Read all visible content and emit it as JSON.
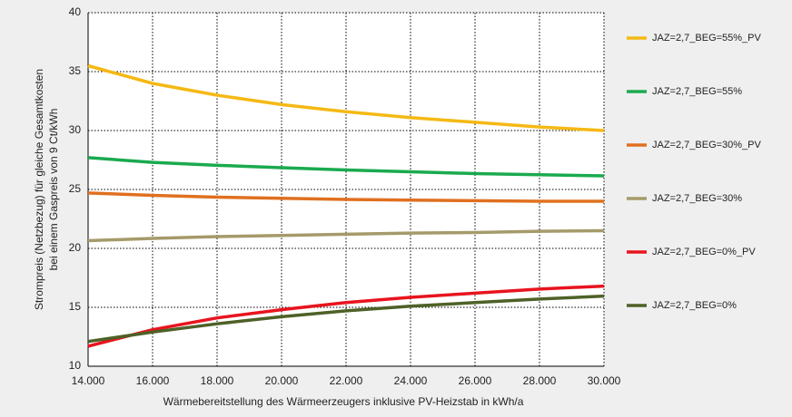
{
  "chart_data": {
    "type": "line",
    "x_label": "Wärmebereitstellung des Wärmeerzeugers inklusive PV-Heizstab in kWh/a",
    "y_label": [
      "Strompreis (Netzbezug) für gleiche Gesamtkosten",
      "bei einem Gaspreis von 9 Ct/kWh"
    ],
    "x": [
      14000,
      16000,
      18000,
      20000,
      22000,
      24000,
      26000,
      28000,
      30000
    ],
    "xlim": [
      14000,
      30000
    ],
    "xticks": [
      {
        "value": 14000,
        "label": "14.000"
      },
      {
        "value": 16000,
        "label": "16.000"
      },
      {
        "value": 18000,
        "label": "18.000"
      },
      {
        "value": 20000,
        "label": "20.000"
      },
      {
        "value": 22000,
        "label": "22.000"
      },
      {
        "value": 24000,
        "label": "24.000"
      },
      {
        "value": 26000,
        "label": "26.000"
      },
      {
        "value": 28000,
        "label": "28.000"
      },
      {
        "value": 30000,
        "label": "30.000"
      }
    ],
    "ylim": [
      10,
      40
    ],
    "yticks": [
      10,
      15,
      20,
      25,
      30,
      35,
      40
    ],
    "grid": true,
    "legend": "right",
    "series": [
      {
        "name": "JAZ=2,7_BEG=55%_PV",
        "color": "#f5b914",
        "values": [
          35.5,
          34.0,
          33.0,
          32.2,
          31.6,
          31.1,
          30.7,
          30.3,
          30.0
        ]
      },
      {
        "name": "JAZ=2,7_BEG=55%",
        "color": "#1aaa4f",
        "values": [
          27.7,
          27.3,
          27.05,
          26.85,
          26.65,
          26.5,
          26.35,
          26.25,
          26.15
        ]
      },
      {
        "name": "JAZ=2,7_BEG=30%_PV",
        "color": "#e07020",
        "values": [
          24.7,
          24.5,
          24.35,
          24.25,
          24.15,
          24.1,
          24.05,
          24.0,
          24.0
        ]
      },
      {
        "name": "JAZ=2,7_BEG=30%",
        "color": "#a59a6a",
        "values": [
          20.65,
          20.85,
          21.0,
          21.1,
          21.2,
          21.3,
          21.35,
          21.45,
          21.5
        ]
      },
      {
        "name": "JAZ=2,7_BEG=0%_PV",
        "color": "#e8141e",
        "values": [
          11.7,
          13.1,
          14.1,
          14.8,
          15.4,
          15.85,
          16.2,
          16.55,
          16.8
        ]
      },
      {
        "name": "JAZ=2,7_BEG=0%",
        "color": "#4e6127",
        "values": [
          12.1,
          12.9,
          13.6,
          14.2,
          14.7,
          15.1,
          15.4,
          15.7,
          15.95
        ]
      }
    ]
  }
}
